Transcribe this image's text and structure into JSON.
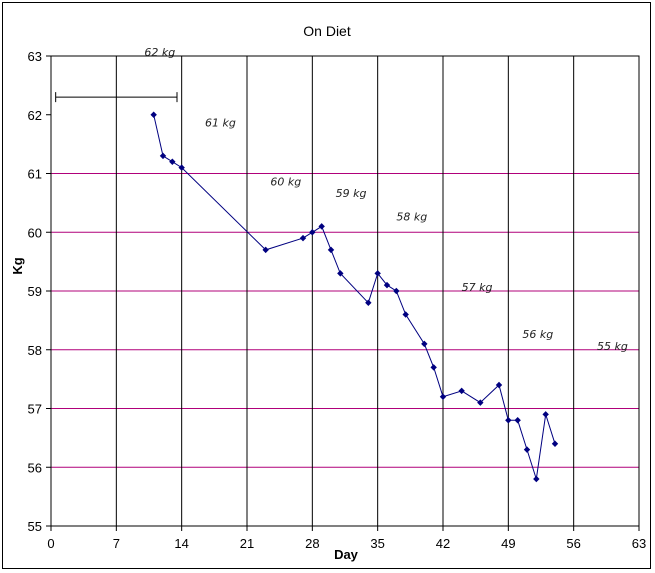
{
  "chart_data": {
    "type": "line",
    "title": "On Diet",
    "xlabel": "Day",
    "ylabel": "Kg",
    "xlim": [
      0,
      63
    ],
    "ylim": [
      55,
      63
    ],
    "x_ticks": [
      0,
      7,
      14,
      21,
      28,
      35,
      42,
      49,
      56,
      63
    ],
    "y_ticks": [
      55,
      56,
      57,
      58,
      59,
      60,
      61,
      62,
      63
    ],
    "vertical_gridlines": [
      7,
      14,
      21,
      28,
      35,
      42,
      49,
      56
    ],
    "horizontal_gridlines": [
      56,
      57,
      58,
      59,
      60,
      61
    ],
    "colors": {
      "series": "#000080",
      "vgrid": "#000000",
      "hgrid": "#b0007a",
      "notes": "#222222"
    },
    "series": [
      {
        "x": [
          11,
          12,
          13,
          14,
          23,
          27,
          28,
          29,
          30,
          31,
          34,
          35,
          36,
          37,
          38,
          40,
          41,
          42,
          44,
          46,
          48,
          49,
          50,
          51,
          52,
          53,
          54
        ],
        "y": [
          62.0,
          61.3,
          61.2,
          61.1,
          59.7,
          59.9,
          60.0,
          60.1,
          59.7,
          59.3,
          58.8,
          59.3,
          59.1,
          59.0,
          58.6,
          58.1,
          57.7,
          57.2,
          57.3,
          57.1,
          57.4,
          56.8,
          56.8,
          56.3,
          55.8,
          56.9,
          56.4
        ]
      }
    ],
    "annotations": [
      {
        "text": "62 kg",
        "x": 10,
        "y": 63.0
      },
      {
        "text": "61 kg",
        "x": 16.5,
        "y": 61.8
      },
      {
        "text": "60 kg",
        "x": 23.5,
        "y": 60.8
      },
      {
        "text": "59 kg",
        "x": 30.5,
        "y": 60.6
      },
      {
        "text": "58 kg",
        "x": 37,
        "y": 60.2
      },
      {
        "text": "57 kg",
        "x": 44,
        "y": 59.0
      },
      {
        "text": "56 kg",
        "x": 50.5,
        "y": 58.2
      },
      {
        "text": "55 kg",
        "x": 58.5,
        "y": 58.0
      }
    ],
    "range_marker": {
      "x_start": 0.5,
      "x_end": 13.5,
      "y": 62.3
    }
  }
}
